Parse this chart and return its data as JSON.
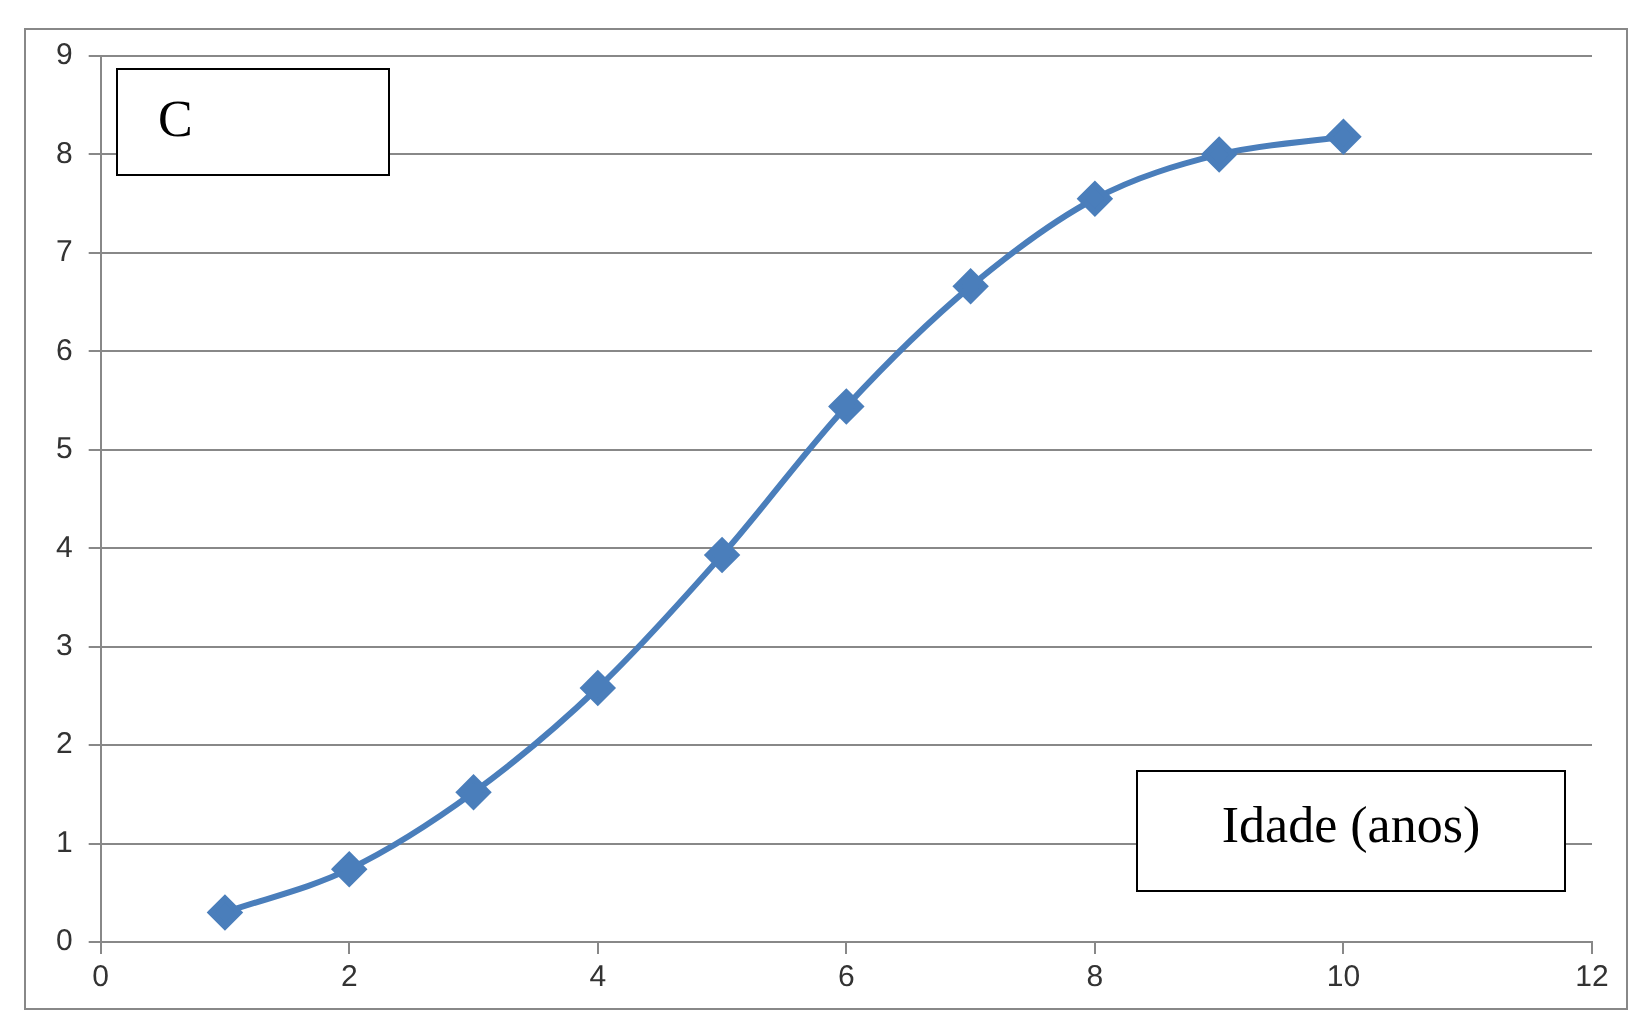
{
  "chart_data": {
    "type": "line",
    "xlabel": "Idade (anos)",
    "annotations": [
      "C"
    ],
    "x": [
      1,
      2,
      3,
      4,
      5,
      6,
      7,
      8,
      9,
      10
    ],
    "series": [
      {
        "color": "#4a7ebb",
        "values": [
          0.3,
          0.74,
          1.52,
          2.58,
          3.93,
          5.44,
          6.66,
          7.55,
          8.0,
          8.18
        ]
      }
    ],
    "xlim": [
      0,
      12
    ],
    "xticks": [
      0,
      2,
      4,
      6,
      8,
      10,
      12
    ],
    "ylim": [
      0,
      9
    ],
    "yticks": [
      0,
      1,
      2,
      3,
      4,
      5,
      6,
      7,
      8,
      9
    ],
    "grid": "y",
    "legend": false,
    "marker": "diamond",
    "line_style": "solid"
  }
}
